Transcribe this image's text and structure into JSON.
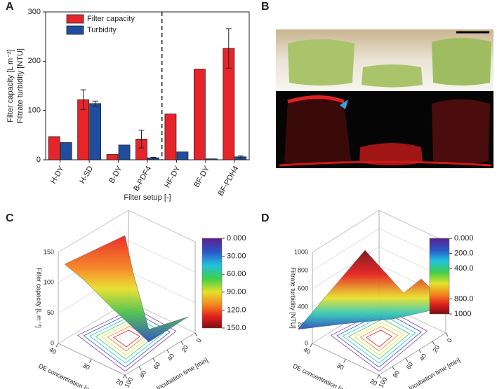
{
  "chart_data": [
    {
      "type": "bar",
      "panel": "A",
      "categories": [
        "H-DY",
        "H-SD",
        "B-DY",
        "B-PDF4",
        "HF-DY",
        "BF-DY",
        "BF-PDH4"
      ],
      "series": [
        {
          "name": "Filter capacity",
          "color": "#e8242b",
          "values": [
            47,
            122,
            11,
            42,
            93,
            184,
            226
          ],
          "errors": [
            null,
            20,
            null,
            18,
            null,
            null,
            40
          ]
        },
        {
          "name": "Turbidity",
          "color": "#1f4e9e",
          "values": [
            35,
            114,
            30,
            4,
            16,
            2,
            6
          ],
          "errors": [
            null,
            5,
            null,
            1,
            null,
            null,
            2
          ]
        }
      ],
      "ylim": [
        0,
        300
      ],
      "yticks": [
        0,
        100,
        200,
        300
      ],
      "ylabel": [
        "Filter capacity [L m⁻²]",
        "Filtrate turbidity [NTU]"
      ],
      "xlabel": "Filter setup [-]"
    },
    {
      "type": "photo",
      "panel": "B"
    },
    {
      "type": "surface3d",
      "panel": "C",
      "zlabel": "Filter capacity [L m⁻²]",
      "xlabel": "DE concentration [g L⁻¹]",
      "ylabel": "Incubation time [min]",
      "xlim": [
        20,
        40
      ],
      "xticks": [
        20,
        30,
        40
      ],
      "ylim": [
        0,
        100
      ],
      "yticks": [
        0,
        20,
        40,
        60,
        80,
        100
      ],
      "zlim": [
        0,
        150
      ],
      "zticks": [
        0,
        50,
        100,
        150
      ],
      "clim": [
        0,
        150
      ],
      "cticks": [
        {
          "value": 0,
          "label": "0.000"
        },
        {
          "value": 30,
          "label": "30.00"
        },
        {
          "value": 60,
          "label": "60.00"
        },
        {
          "value": 90,
          "label": "90.00"
        },
        {
          "value": 120,
          "label": "120.0"
        },
        {
          "value": 150,
          "label": "150.0"
        }
      ]
    },
    {
      "type": "surface3d",
      "panel": "D",
      "zlabel": "Filtrate turbidity [NTU]",
      "xlabel": "DE concentration [g L⁻¹]",
      "ylabel": "Incubation time [min]",
      "xlim": [
        20,
        40
      ],
      "xticks": [
        20,
        30,
        40
      ],
      "ylim": [
        0,
        100
      ],
      "yticks": [
        0,
        20,
        40,
        60,
        80,
        100
      ],
      "zlim": [
        0,
        1000
      ],
      "zticks": [
        0,
        200,
        400,
        600,
        800,
        1000
      ],
      "clim": [
        0,
        1000
      ],
      "cticks": [
        {
          "value": 0,
          "label": "0.000"
        },
        {
          "value": 200,
          "label": "200.0"
        },
        {
          "value": 400,
          "label": "400.0"
        },
        {
          "value": 800,
          "label": "800.0"
        },
        {
          "value": 1000,
          "label": "1000"
        }
      ]
    }
  ]
}
